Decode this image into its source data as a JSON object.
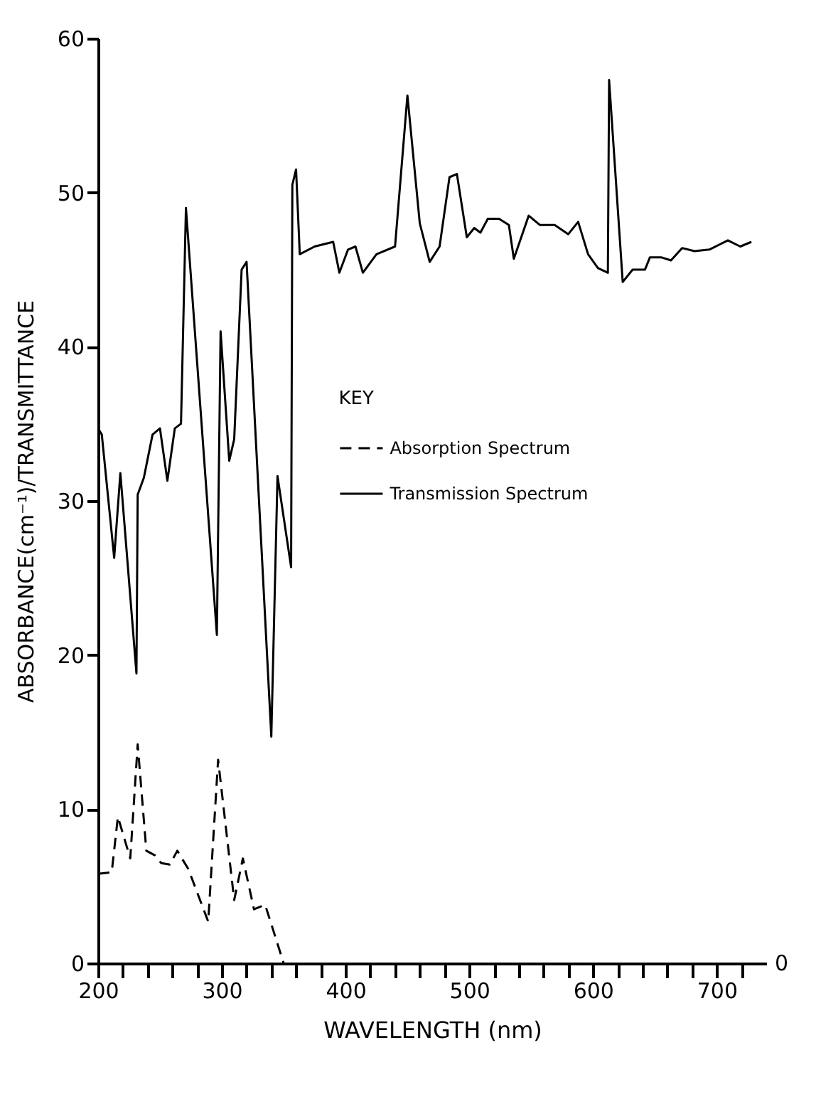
{
  "chart_data": {
    "type": "line",
    "xlabel": "WAVELENGTH    (nm)",
    "ylabel": "ABSORBANCE(cm⁻¹)/TRANSMITTANCE",
    "legend_title": "KEY",
    "legend": "center",
    "xlim": [
      200,
      740
    ],
    "xticks": [
      200,
      {
        "value": 220,
        "label": null
      },
      {
        "value": 240,
        "label": null
      },
      {
        "value": 260,
        "label": null
      },
      {
        "value": 280,
        "label": null
      },
      300,
      {
        "value": 320,
        "label": null
      },
      {
        "value": 340,
        "label": null
      },
      {
        "value": 360,
        "label": null
      },
      {
        "value": 380,
        "label": null
      },
      400,
      {
        "value": 420,
        "label": null
      },
      {
        "value": 440,
        "label": null
      },
      {
        "value": 460,
        "label": null
      },
      {
        "value": 480,
        "label": null
      },
      500,
      {
        "value": 520,
        "label": null
      },
      {
        "value": 540,
        "label": null
      },
      {
        "value": 560,
        "label": null
      },
      {
        "value": 580,
        "label": null
      },
      600,
      {
        "value": 620,
        "label": null
      },
      {
        "value": 640,
        "label": null
      },
      {
        "value": 660,
        "label": null
      },
      {
        "value": 680,
        "label": null
      },
      700,
      {
        "value": 720,
        "label": null
      }
    ],
    "ylim": [
      0,
      60
    ],
    "yticks": [
      0,
      10,
      20,
      30,
      40,
      50,
      60
    ],
    "grid": false,
    "annotations": [
      "0"
    ],
    "series": [
      {
        "name": "Absorption Spectrum",
        "color": "#000000",
        "line_style": "dashed",
        "x": [
          200,
          211,
          216,
          226,
          232,
          239,
          246,
          251,
          258,
          264,
          273,
          289,
          297,
          310,
          317,
          326,
          335,
          350
        ],
        "values": [
          5.8,
          5.9,
          9.5,
          6.8,
          14.2,
          7.3,
          7.0,
          6.5,
          6.4,
          7.3,
          6.1,
          2.7,
          13.2,
          4.1,
          6.8,
          3.5,
          3.8,
          0
        ]
      },
      {
        "name": "Transmission Spectrum",
        "color": "#000000",
        "line_style": "solid",
        "x": [
          200,
          203,
          213,
          218,
          231,
          232,
          237,
          244,
          250,
          256,
          262,
          267,
          271,
          296,
          299,
          306,
          310,
          316,
          320,
          340,
          345,
          356,
          357,
          360,
          363,
          375,
          390,
          395,
          402,
          408,
          414,
          425,
          440,
          450,
          460,
          468,
          476,
          484,
          490,
          498,
          504,
          509,
          515,
          524,
          532,
          536,
          548,
          557,
          569,
          580,
          588,
          596,
          604,
          612,
          613,
          624,
          632,
          642,
          646,
          655,
          663,
          672,
          682,
          694,
          709,
          719,
          728
        ],
        "values": [
          34.7,
          34.3,
          26.3,
          31.8,
          18.8,
          30.4,
          31.5,
          34.3,
          34.7,
          31.3,
          34.7,
          35.0,
          49.0,
          21.3,
          41.0,
          32.6,
          34.0,
          45.0,
          45.5,
          14.7,
          31.6,
          25.7,
          50.5,
          51.5,
          46.0,
          46.5,
          46.8,
          44.8,
          46.3,
          46.5,
          44.8,
          46.0,
          46.5,
          56.3,
          48.0,
          45.5,
          46.5,
          51.0,
          51.2,
          47.1,
          47.7,
          47.4,
          48.3,
          48.3,
          47.9,
          45.7,
          48.5,
          47.9,
          47.9,
          47.3,
          48.1,
          46.0,
          45.1,
          44.8,
          57.3,
          44.2,
          45.0,
          45.0,
          45.8,
          45.8,
          45.6,
          46.4,
          46.2,
          46.3,
          46.9,
          46.5,
          46.8
        ]
      }
    ]
  }
}
